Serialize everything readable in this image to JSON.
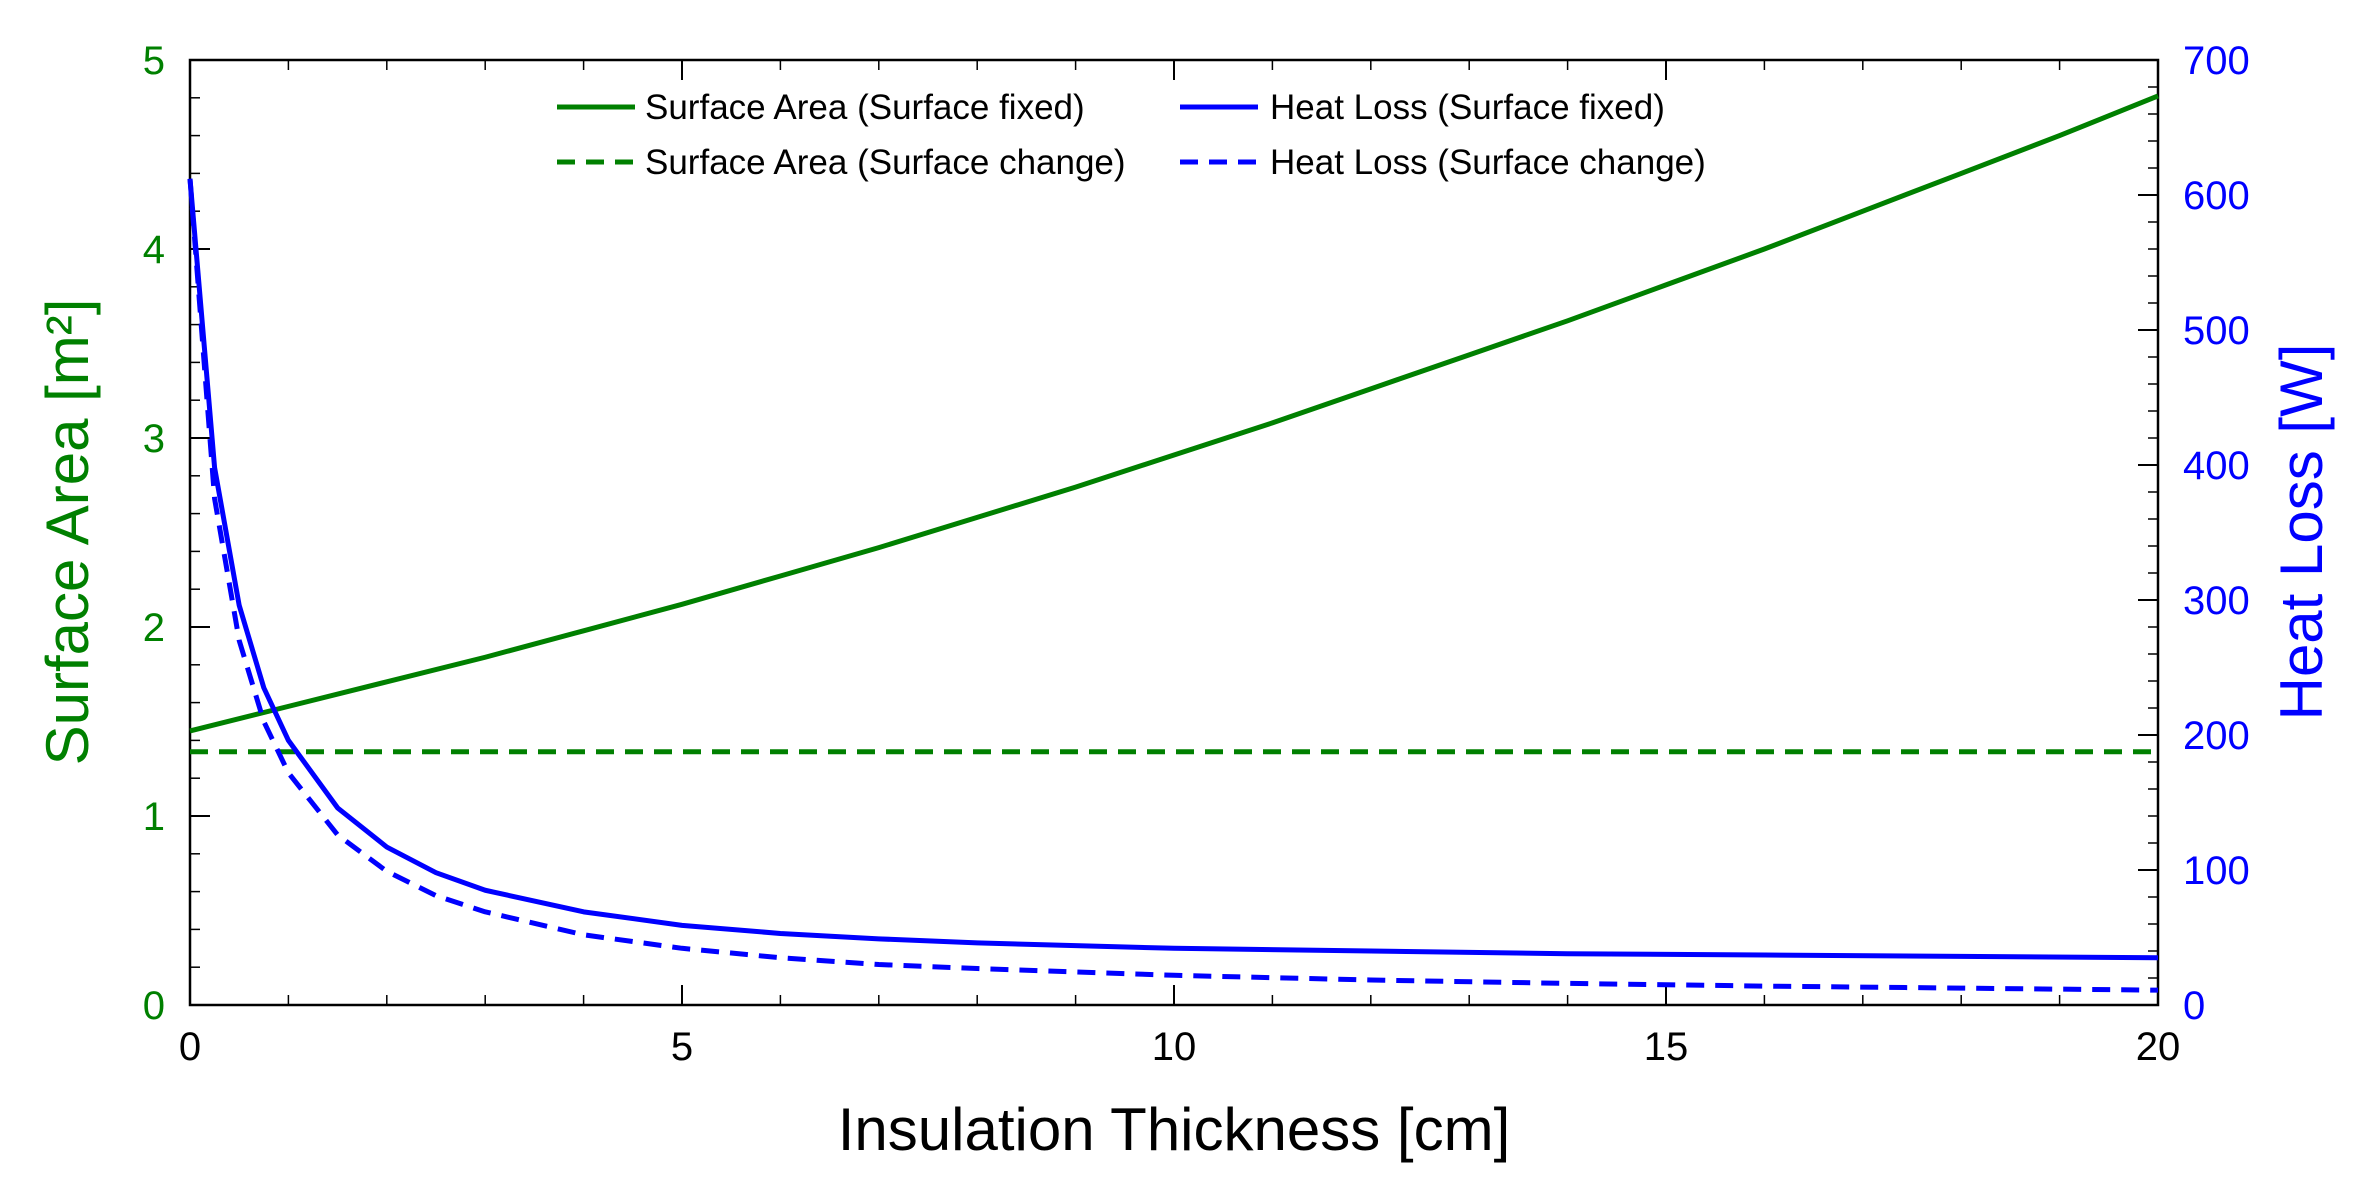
{
  "chart_data": {
    "type": "line",
    "xlabel": "Insulation Thickness [cm]",
    "ylabel_left": "Surface Area [m²]",
    "ylabel_right": "Heat Loss [W]",
    "xlim": [
      0,
      20
    ],
    "ylim_left": [
      0,
      5
    ],
    "ylim_right": [
      0,
      700
    ],
    "x_ticks": [
      0,
      5,
      10,
      15,
      20
    ],
    "y_left_ticks": [
      0,
      1,
      2,
      3,
      4,
      5
    ],
    "y_right_ticks": [
      0,
      100,
      200,
      300,
      400,
      500,
      600,
      700
    ],
    "grid": false,
    "legend_position": "top-center",
    "colors": {
      "left_axis": "#008000",
      "right_axis": "#0000ff"
    },
    "series": [
      {
        "name": "Surface Area (Surface fixed)",
        "axis": "left",
        "color": "#008000",
        "style": "solid",
        "x": [
          0,
          1,
          2,
          3,
          4,
          5,
          6,
          7,
          8,
          9,
          10,
          11,
          12,
          13,
          14,
          15,
          16,
          17,
          18,
          19,
          20
        ],
        "y": [
          1.45,
          1.58,
          1.71,
          1.84,
          1.98,
          2.12,
          2.27,
          2.42,
          2.58,
          2.74,
          2.91,
          3.08,
          3.26,
          3.44,
          3.62,
          3.81,
          4.0,
          4.2,
          4.4,
          4.6,
          4.81
        ]
      },
      {
        "name": "Surface Area (Surface change)",
        "axis": "left",
        "color": "#008000",
        "style": "dashed",
        "x": [
          0,
          20
        ],
        "y": [
          1.34,
          1.34
        ]
      },
      {
        "name": "Heat Loss (Surface fixed)",
        "axis": "right",
        "color": "#0000ff",
        "style": "solid",
        "x": [
          0,
          0.25,
          0.5,
          0.75,
          1,
          1.5,
          2,
          2.5,
          3,
          4,
          5,
          6,
          7,
          8,
          10,
          12,
          14,
          16,
          18,
          20
        ],
        "y": [
          612,
          398,
          296,
          235,
          196,
          146,
          117,
          98,
          85,
          69,
          59,
          53,
          49,
          46,
          42,
          40,
          38,
          37,
          36,
          35
        ]
      },
      {
        "name": "Heat Loss (Surface change)",
        "axis": "right",
        "color": "#0000ff",
        "style": "dashed",
        "x": [
          0,
          0.25,
          0.5,
          0.75,
          1,
          1.5,
          2,
          2.5,
          3,
          4,
          5,
          6,
          7,
          8,
          10,
          12,
          14,
          16,
          18,
          20
        ],
        "y": [
          612,
          375,
          270,
          210,
          172,
          126,
          99,
          81,
          69,
          52,
          42,
          35,
          30,
          27,
          22,
          18.5,
          16,
          14,
          12.5,
          11
        ]
      }
    ]
  }
}
